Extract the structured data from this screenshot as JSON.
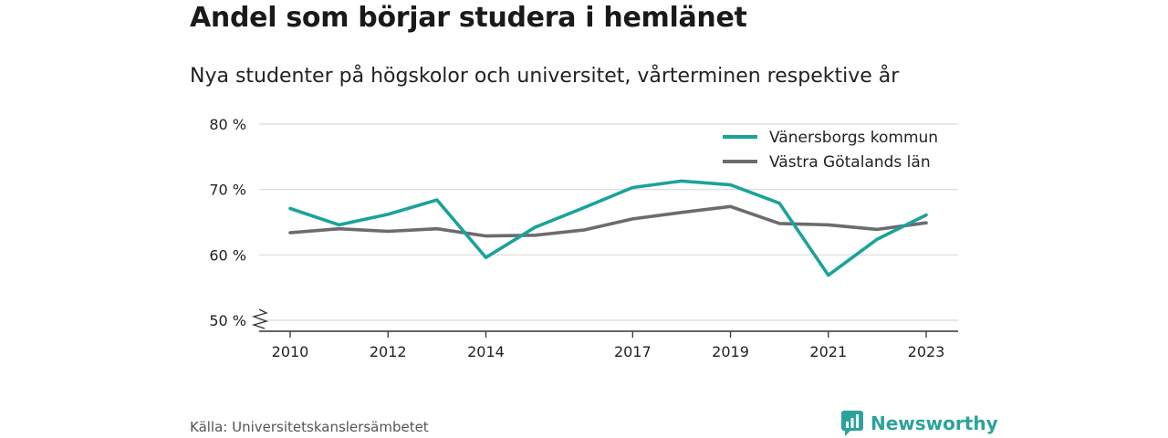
{
  "header": {
    "title": "Andel som börjar studera i hemlänet",
    "subtitle": "Nya studenter på högskolor och universitet, vårterminen respektive år"
  },
  "footer": {
    "source": "Källa: Universitetskanslersämbetet",
    "brand": "Newsworthy"
  },
  "colors": {
    "series_1": "#1aa39a",
    "series_2": "#6b6b70",
    "grid": "#d9d9d9",
    "axis": "#333333",
    "brand": "#2ba39a"
  },
  "icons": {
    "brand_logo": "bar-chart-speech-bubble-icon",
    "axis_break": "zigzag-break-icon"
  },
  "chart_data": {
    "type": "line",
    "x": [
      2010,
      2011,
      2012,
      2013,
      2014,
      2015,
      2016,
      2017,
      2018,
      2019,
      2020,
      2021,
      2022,
      2023
    ],
    "x_tick_labels": [
      "2010",
      "2012",
      "2014",
      "2017",
      "2019",
      "2021",
      "2023"
    ],
    "y_tick_values": [
      50,
      60,
      70,
      80
    ],
    "y_tick_labels": [
      "50 %",
      "60 %",
      "70 %",
      "80 %"
    ],
    "ylim": [
      50,
      80
    ],
    "y_axis_break": true,
    "grid": true,
    "legend_position": "top-right",
    "series": [
      {
        "name": "Vänersborgs kommun",
        "values": [
          67.1,
          64.6,
          66.2,
          68.4,
          59.6,
          64.2,
          67.2,
          70.3,
          71.3,
          70.7,
          67.9,
          56.9,
          62.4,
          66.1
        ]
      },
      {
        "name": "Västra Götalands län",
        "values": [
          63.4,
          64.0,
          63.6,
          64.0,
          62.9,
          63.0,
          63.8,
          65.5,
          66.5,
          67.4,
          64.8,
          64.6,
          63.9,
          64.9
        ]
      }
    ]
  }
}
